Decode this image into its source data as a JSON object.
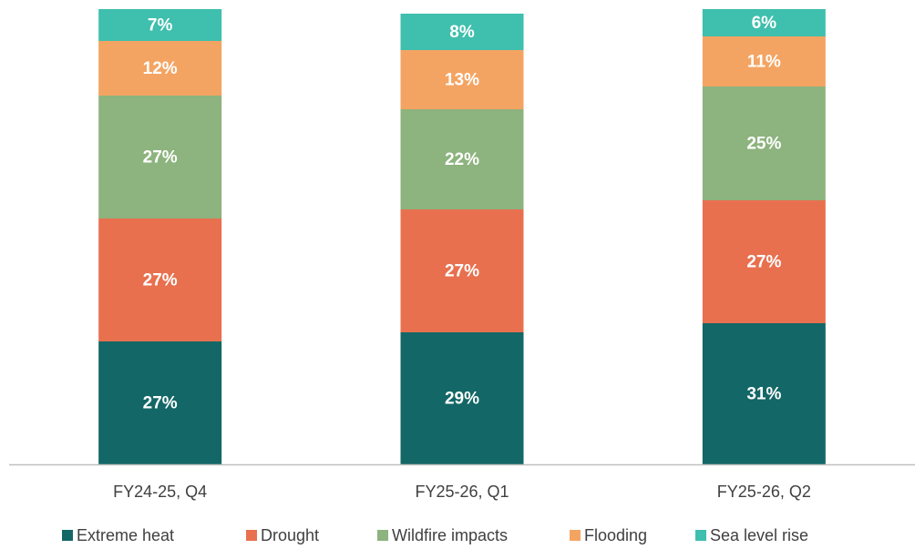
{
  "chart_data": {
    "type": "stacked_bar",
    "categories": [
      "FY24-25, Q4",
      "FY25-26, Q1",
      "FY25-26, Q2"
    ],
    "ylim": [
      0,
      100
    ],
    "legend": "bottom",
    "series": [
      {
        "name": "Extreme heat",
        "color": "#136766",
        "values": [
          27,
          29,
          31
        ],
        "value_labels": [
          "27%",
          "29%",
          "31%"
        ]
      },
      {
        "name": "Drought",
        "color": "#e8704f",
        "values": [
          27,
          27,
          27
        ],
        "value_labels": [
          "27%",
          "27%",
          "27%"
        ]
      },
      {
        "name": "Wildfire impacts",
        "color": "#8db37e",
        "values": [
          27,
          22,
          25
        ],
        "value_labels": [
          "27%",
          "22%",
          "25%"
        ]
      },
      {
        "name": "Flooding",
        "color": "#f4a462",
        "values": [
          12,
          13,
          11
        ],
        "value_labels": [
          "12%",
          "13%",
          "11%"
        ]
      },
      {
        "name": "Sea level rise",
        "color": "#3fbfad",
        "values": [
          7,
          8,
          6
        ],
        "value_labels": [
          "7%",
          "8%",
          "6%"
        ]
      }
    ]
  }
}
